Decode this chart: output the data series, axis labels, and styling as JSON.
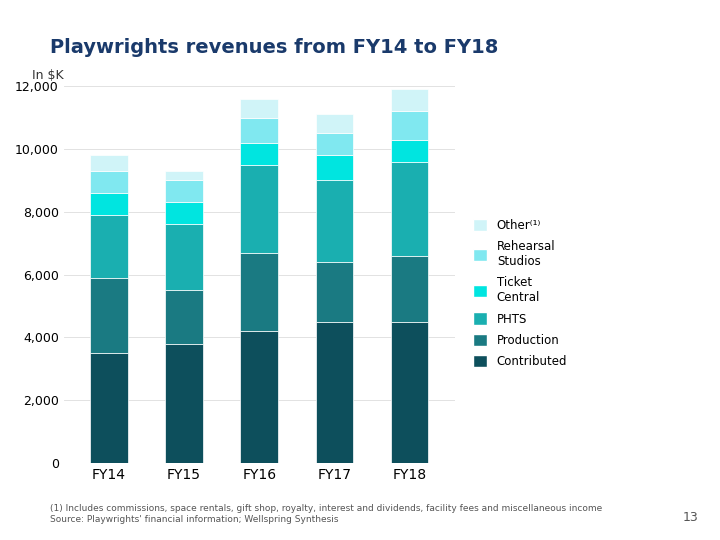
{
  "title": "Playwrights revenues from FY14 to FY18",
  "ylabel": "In $K",
  "categories": [
    "FY14",
    "FY15",
    "FY16",
    "FY17",
    "FY18"
  ],
  "segments": {
    "Contributed": [
      3500,
      3800,
      4200,
      4500,
      4500
    ],
    "Production": [
      2400,
      1700,
      2500,
      1900,
      2100
    ],
    "PHTS": [
      2000,
      2100,
      2800,
      2600,
      3000
    ],
    "Ticket Central": [
      700,
      700,
      700,
      800,
      700
    ],
    "Rehearsal Studios": [
      700,
      700,
      800,
      700,
      900
    ],
    "Other¹": [
      500,
      300,
      600,
      600,
      700
    ]
  },
  "colors": {
    "Contributed": "#0d4f5c",
    "Production": "#1a7a82",
    "PHTS": "#1aafb0",
    "Ticket Central": "#00e5e0",
    "Rehearsal Studios": "#80e8f0",
    "Other¹": "#d0f4f8"
  },
  "legend_labels": [
    "Other⁽¹⁾",
    "Rehearsal\nStudios",
    "Ticket\nCentral",
    "PHTS",
    "Production",
    "Contributed"
  ],
  "ylim": [
    0,
    12000
  ],
  "yticks": [
    0,
    2000,
    4000,
    6000,
    8000,
    10000,
    12000
  ],
  "background_color": "#ffffff",
  "footnote": "(1) Includes commissions, space rentals, gift shop, royalty, interest and dividends, facility fees and miscellaneous income\nSource: Playwrights' financial information; Wellspring Synthesis",
  "page_number": "13",
  "bar_width": 0.5
}
